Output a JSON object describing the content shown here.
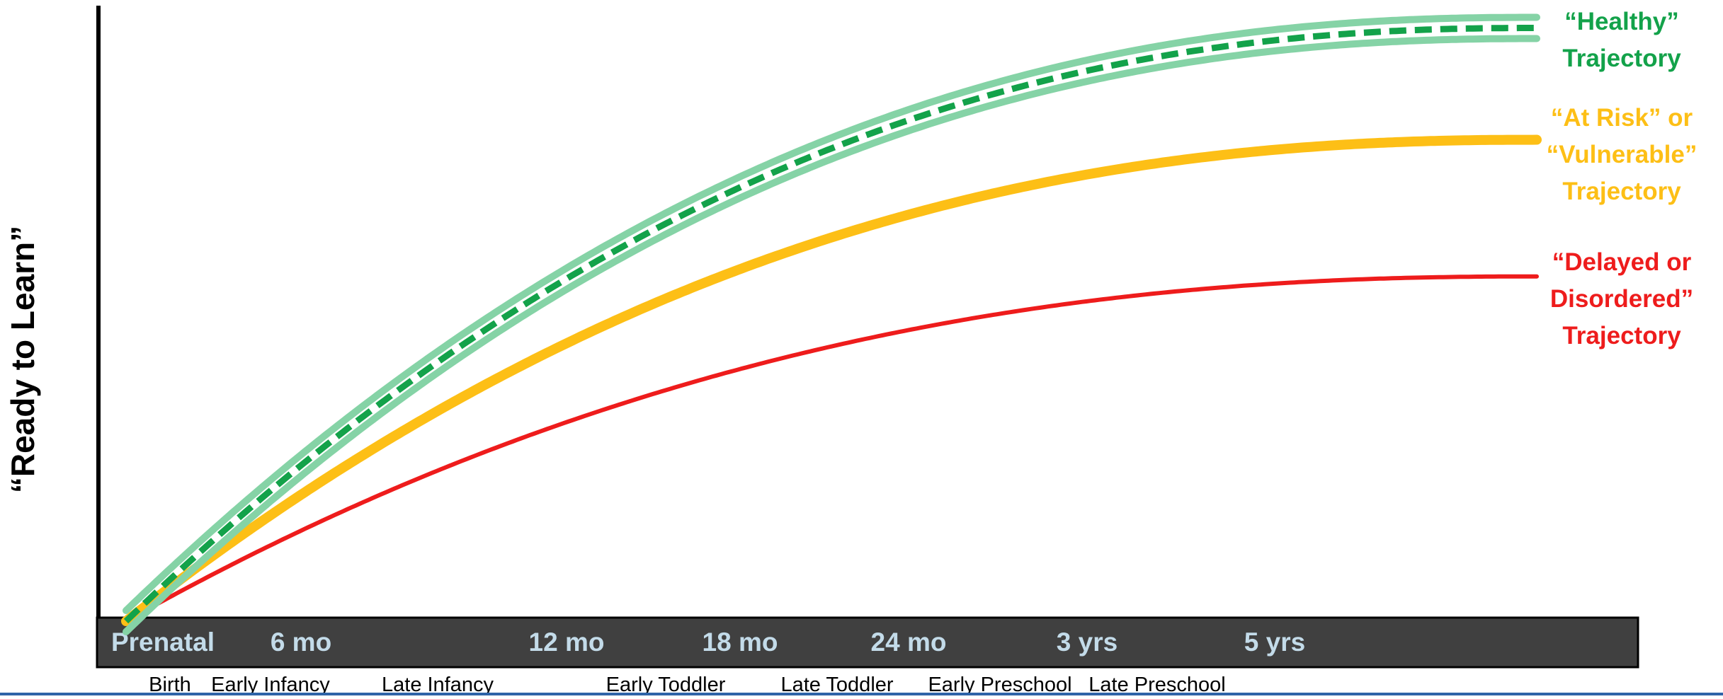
{
  "axis": {
    "y_title": "“Ready to Learn”"
  },
  "timeline": {
    "ages": [
      "Prenatal",
      "6 mo",
      "12 mo",
      "18 mo",
      "24 mo",
      "3 yrs",
      "5 yrs"
    ],
    "stages": [
      "Birth",
      "Early Infancy",
      "Late Infancy",
      "Early Toddler",
      "Late Toddler",
      "Early Preschool",
      "Late Preschool"
    ],
    "bar_color": "#404040",
    "age_text_color": "#c3dbe9"
  },
  "trajectories": [
    {
      "id": "healthy",
      "lines": [
        "“Healthy”",
        "Trajectory"
      ],
      "color": "#13a24a",
      "band_color": "#85d3a6",
      "plateau": 0.955
    },
    {
      "id": "at-risk",
      "lines": [
        "“At Risk” or",
        "“Vulnerable”",
        "Trajectory"
      ],
      "color": "#fdbf16",
      "plateau": 0.775
    },
    {
      "id": "delayed",
      "lines": [
        "“Delayed or",
        "Disordered”",
        "Trajectory"
      ],
      "color": "#ee1c1c",
      "plateau": 0.555
    }
  ]
}
